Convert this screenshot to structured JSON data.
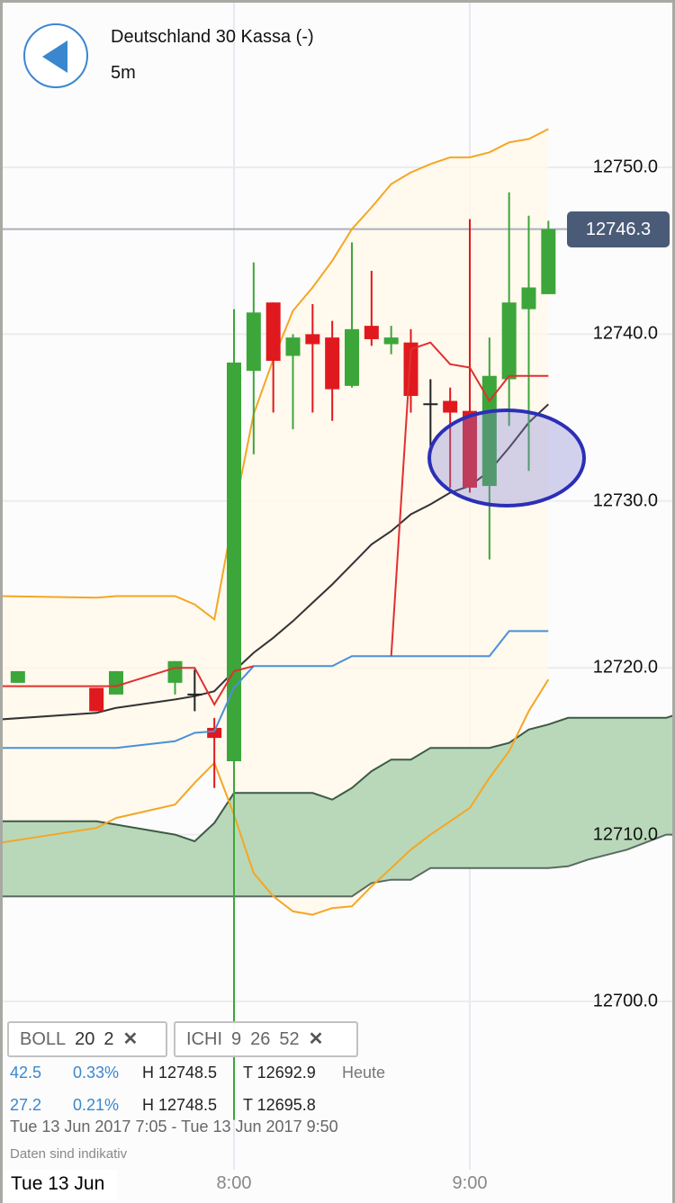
{
  "header": {
    "title": "Deutschland 30 Kassa (-)",
    "interval": "5m",
    "back_icon": "back-arrow-icon"
  },
  "current_price": "12746.3",
  "colors": {
    "up": "#3ca63a",
    "down": "#e0191e",
    "doji": "#222222",
    "boll_band": "#f5a623",
    "boll_mid": "#333333",
    "tenkan": "#e03030",
    "kijun": "#4a90d9",
    "cloud": "#b9d8b9",
    "annotation": "#2b2fb8",
    "accent": "#3a87d0",
    "price_label": "#4a5b78"
  },
  "indicators": [
    {
      "name": "BOLL",
      "params": [
        "20",
        "2"
      ],
      "remove_icon": "close-icon"
    },
    {
      "name": "ICHI",
      "params": [
        "9",
        "26",
        "52"
      ],
      "remove_icon": "close-icon"
    }
  ],
  "stats": [
    {
      "change": "42.5",
      "pct": "0.33%",
      "high": "H 12748.5",
      "low": "T 12692.9",
      "label": "Heute"
    },
    {
      "change": "27.2",
      "pct": "0.21%",
      "high": "H 12748.5",
      "low": "T 12695.8"
    }
  ],
  "range": "Tue 13 Jun 2017 7:05 - Tue 13 Jun 2017 9:50",
  "note": "Daten sind indikativ",
  "chart_data": {
    "type": "candlestick",
    "date_label": "Tue 13 Jun",
    "x_ticks": [
      "8:00",
      "9:00"
    ],
    "y_ticks": [
      "12750.0",
      "12740.0",
      "12730.0",
      "12720.0",
      "12710.0",
      "12700.0"
    ],
    "ylim": [
      12691,
      12757
    ],
    "grid": true,
    "candles": [
      {
        "t": "7:05",
        "o": 12719.1,
        "h": 12719.8,
        "l": 12719.1,
        "c": 12719.8
      },
      {
        "t": "7:25",
        "o": 12718.8,
        "h": 12718.8,
        "l": 12717.4,
        "c": 12717.4
      },
      {
        "t": "7:30",
        "o": 12718.4,
        "h": 12719.8,
        "l": 12718.4,
        "c": 12719.8
      },
      {
        "t": "7:45",
        "o": 12719.1,
        "h": 12720.4,
        "l": 12718.4,
        "c": 12720.4
      },
      {
        "t": "7:50",
        "o": 12718.4,
        "h": 12719.9,
        "l": 12717.4,
        "c": 12718.4
      },
      {
        "t": "7:55",
        "o": 12716.4,
        "h": 12717.0,
        "l": 12712.8,
        "c": 12715.8
      },
      {
        "t": "8:00",
        "o": 12714.4,
        "h": 12741.5,
        "l": 12692.9,
        "c": 12738.3
      },
      {
        "t": "8:05",
        "o": 12737.8,
        "h": 12744.3,
        "l": 12732.8,
        "c": 12741.3
      },
      {
        "t": "8:10",
        "o": 12741.9,
        "h": 12741.9,
        "l": 12735.3,
        "c": 12738.4
      },
      {
        "t": "8:15",
        "o": 12738.7,
        "h": 12740.0,
        "l": 12734.3,
        "c": 12739.8
      },
      {
        "t": "8:20",
        "o": 12740.0,
        "h": 12741.8,
        "l": 12735.3,
        "c": 12739.4
      },
      {
        "t": "8:25",
        "o": 12739.8,
        "h": 12740.8,
        "l": 12734.8,
        "c": 12736.7
      },
      {
        "t": "8:30",
        "o": 12736.9,
        "h": 12745.5,
        "l": 12736.8,
        "c": 12740.3
      },
      {
        "t": "8:35",
        "o": 12740.5,
        "h": 12743.8,
        "l": 12739.3,
        "c": 12739.7
      },
      {
        "t": "8:40",
        "o": 12739.4,
        "h": 12740.5,
        "l": 12738.8,
        "c": 12739.8
      },
      {
        "t": "8:45",
        "o": 12739.5,
        "h": 12740.3,
        "l": 12735.3,
        "c": 12736.3
      },
      {
        "t": "8:50",
        "o": 12735.8,
        "h": 12737.3,
        "l": 12733.3,
        "c": 12735.8
      },
      {
        "t": "8:55",
        "o": 12736.0,
        "h": 12736.8,
        "l": 12730.8,
        "c": 12735.3
      },
      {
        "t": "9:00",
        "o": 12735.4,
        "h": 12746.9,
        "l": 12730.5,
        "c": 12730.8
      },
      {
        "t": "9:05",
        "o": 12730.9,
        "h": 12739.8,
        "l": 12726.5,
        "c": 12737.5
      },
      {
        "t": "9:10",
        "o": 12737.3,
        "h": 12748.5,
        "l": 12734.5,
        "c": 12741.9
      },
      {
        "t": "9:15",
        "o": 12741.5,
        "h": 12747.1,
        "l": 12731.8,
        "c": 12742.8
      },
      {
        "t": "9:20",
        "o": 12742.4,
        "h": 12746.8,
        "l": 12742.4,
        "c": 12746.3
      }
    ],
    "line_times": [
      "7:00",
      "7:25",
      "7:30",
      "7:45",
      "7:50",
      "7:55",
      "8:00",
      "8:05",
      "8:10",
      "8:15",
      "8:20",
      "8:25",
      "8:30",
      "8:35",
      "8:40",
      "8:45",
      "8:50",
      "8:55",
      "9:00",
      "9:05",
      "9:10",
      "9:15",
      "9:20"
    ],
    "boll_upper": [
      12724.3,
      12724.2,
      12724.3,
      12724.3,
      12723.8,
      12722.9,
      12729.3,
      12735.2,
      12738.5,
      12741.4,
      12742.8,
      12744.4,
      12746.3,
      12747.6,
      12749.0,
      12749.7,
      12750.2,
      12750.6,
      12750.6,
      12750.9,
      12751.5,
      12751.7,
      12752.3
    ],
    "boll_middle": [
      12716.9,
      12717.3,
      12717.6,
      12718.1,
      12718.3,
      12718.6,
      12719.8,
      12720.9,
      12721.8,
      12722.8,
      12723.9,
      12725.0,
      12726.2,
      12727.4,
      12728.2,
      12729.2,
      12729.8,
      12730.5,
      12730.9,
      12731.8,
      12733.2,
      12734.7,
      12735.8
    ],
    "boll_lower": [
      12709.5,
      12710.4,
      12711.0,
      12711.8,
      12713.1,
      12714.3,
      12711.2,
      12707.7,
      12706.3,
      12705.4,
      12705.2,
      12705.6,
      12705.7,
      12706.9,
      12708.0,
      12709.1,
      12710.0,
      12710.8,
      12711.6,
      12713.4,
      12715.0,
      12717.4,
      12719.3
    ],
    "tenkan": [
      12718.9,
      12718.9,
      12718.9,
      12720.0,
      12720.0,
      12717.8,
      12719.8,
      12720.1,
      12720.1,
      12720.1,
      12720.1,
      12720.1,
      12720.7,
      12720.7,
      12720.7,
      12739.1,
      12739.5,
      12738.2,
      12738.0,
      12736.0,
      12737.5,
      12737.5,
      12737.5
    ],
    "kijun": [
      12715.2,
      12715.2,
      12715.2,
      12715.6,
      12716.1,
      12716.2,
      12718.8,
      12720.1,
      12720.1,
      12720.1,
      12720.1,
      12720.1,
      12720.7,
      12720.7,
      12720.7,
      12720.7,
      12720.7,
      12720.7,
      12720.7,
      12720.7,
      12722.2,
      12722.2,
      12722.2
    ],
    "cloud_upper": [
      [
        "7:00",
        12710.8
      ],
      [
        "7:25",
        12710.8
      ],
      [
        "7:45",
        12710.0
      ],
      [
        "7:50",
        12709.6
      ],
      [
        "7:55",
        12710.7
      ],
      [
        "8:00",
        12712.5
      ],
      [
        "8:20",
        12712.5
      ],
      [
        "8:25",
        12712.1
      ],
      [
        "8:30",
        12712.8
      ],
      [
        "8:35",
        12713.8
      ],
      [
        "8:40",
        12714.5
      ],
      [
        "8:45",
        12714.5
      ],
      [
        "8:50",
        12715.2
      ],
      [
        "9:05",
        12715.2
      ],
      [
        "9:10",
        12715.5
      ],
      [
        "9:15",
        12716.3
      ],
      [
        "9:20",
        12716.6
      ],
      [
        "9:25",
        12717.0
      ],
      [
        "9:50",
        12717.0
      ],
      [
        "9:55",
        12717.4
      ]
    ],
    "cloud_lower": [
      [
        "7:00",
        12706.3
      ],
      [
        "8:30",
        12706.3
      ],
      [
        "8:35",
        12707.1
      ],
      [
        "8:40",
        12707.3
      ],
      [
        "8:45",
        12707.3
      ],
      [
        "8:50",
        12708.0
      ],
      [
        "9:20",
        12708.0
      ],
      [
        "9:25",
        12708.1
      ],
      [
        "9:30",
        12708.5
      ],
      [
        "9:40",
        12709.1
      ],
      [
        "9:50",
        12710.0
      ],
      [
        "9:55",
        12710.0
      ]
    ]
  }
}
